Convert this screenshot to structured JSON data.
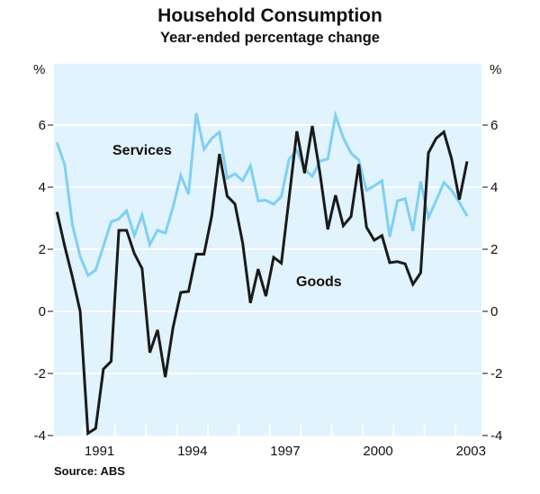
{
  "chart_data": {
    "type": "line",
    "title": "Household Consumption",
    "subtitle": "Year-ended percentage change",
    "source": "Source: ABS",
    "ylabel_left": "%",
    "ylabel_right": "%",
    "ylim": [
      -4,
      7.9
    ],
    "yticks": [
      -4,
      -2,
      0,
      2,
      4,
      6
    ],
    "ytick_labels": [
      "-4",
      "-2",
      "0",
      "2",
      "4",
      "6"
    ],
    "xlim": [
      1990.0,
      2003.87
    ],
    "xtick_labels": [
      "1991",
      "1994",
      "1997",
      "2000",
      "2003"
    ],
    "x_start": "1990-Q1",
    "x_frequency": "quarterly",
    "grid": true,
    "background": "#e1f3fc",
    "series": [
      {
        "name": "Services",
        "color": "#7fd0f2",
        "values": [
          5.44,
          4.72,
          2.78,
          1.77,
          1.16,
          1.33,
          2.1,
          2.88,
          2.98,
          3.24,
          2.44,
          3.1,
          2.15,
          2.61,
          2.52,
          3.36,
          4.38,
          3.77,
          6.38,
          5.22,
          5.57,
          5.77,
          4.29,
          4.43,
          4.21,
          4.69,
          3.56,
          3.58,
          3.45,
          3.7,
          4.9,
          5.19,
          4.58,
          4.35,
          4.84,
          4.91,
          6.31,
          5.59,
          5.1,
          4.87,
          3.9,
          4.04,
          4.21,
          2.4,
          3.56,
          3.63,
          2.59,
          4.18,
          3.02,
          3.56,
          4.15,
          3.9,
          3.51,
          3.07
        ]
      },
      {
        "name": "Goods",
        "color": "#1a1a1a",
        "values": [
          3.2,
          2.1,
          1.1,
          0.0,
          -3.93,
          -3.77,
          -1.86,
          -1.61,
          2.61,
          2.61,
          1.86,
          1.38,
          -1.33,
          -0.6,
          -2.12,
          -0.52,
          0.61,
          0.64,
          1.84,
          1.84,
          3.07,
          5.07,
          3.71,
          3.46,
          2.2,
          0.27,
          1.36,
          0.49,
          1.74,
          1.55,
          3.65,
          5.8,
          4.45,
          5.97,
          4.43,
          2.64,
          3.74,
          2.76,
          3.05,
          4.74,
          2.71,
          2.29,
          2.44,
          1.57,
          1.6,
          1.53,
          0.87,
          1.24,
          5.1,
          5.57,
          5.78,
          4.91,
          3.6,
          4.83
        ]
      }
    ]
  }
}
